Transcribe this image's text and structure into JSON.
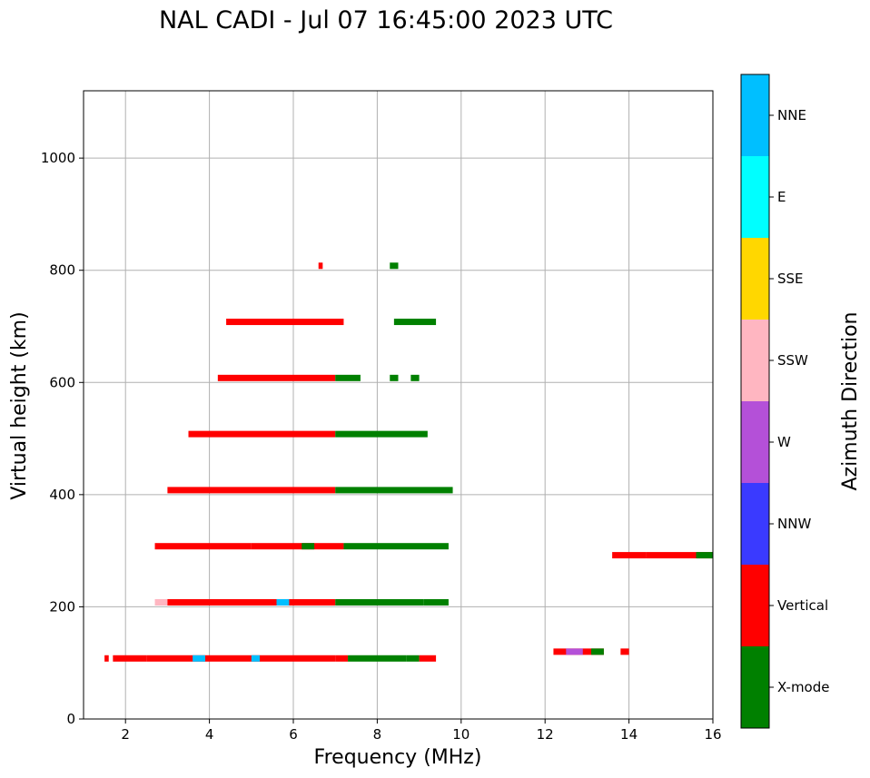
{
  "chart_data": {
    "type": "scatter",
    "title": "NAL CADI - Jul 07 16:45:00 2023 UTC",
    "xlabel": "Frequency (MHz)",
    "ylabel": "Virtual height (km)",
    "xlim": [
      1,
      16
    ],
    "ylim": [
      0,
      1120
    ],
    "xticks": [
      2,
      4,
      6,
      8,
      10,
      12,
      14,
      16
    ],
    "yticks": [
      0,
      200,
      400,
      600,
      800,
      1000
    ],
    "grid": true,
    "colorbar": {
      "label": "Azimuth Direction",
      "categories": [
        {
          "name": "X-mode",
          "color": "#008000"
        },
        {
          "name": "Vertical",
          "color": "#ff0000"
        },
        {
          "name": "NNW",
          "color": "#3a3aff"
        },
        {
          "name": "W",
          "color": "#b450d8"
        },
        {
          "name": "SSW",
          "color": "#ffb6c1"
        },
        {
          "name": "SSE",
          "color": "#ffd700"
        },
        {
          "name": "E",
          "color": "#00ffff"
        },
        {
          "name": "NNE",
          "color": "#00bfff"
        }
      ]
    },
    "echo_bands": [
      {
        "height": 108,
        "segments": [
          {
            "x0": 1.5,
            "x1": 1.6,
            "class": "Vertical"
          },
          {
            "x0": 1.7,
            "x1": 2.5,
            "class": "Vertical"
          },
          {
            "x0": 2.5,
            "x1": 7.0,
            "class": "Vertical"
          },
          {
            "x0": 3.6,
            "x1": 3.9,
            "class": "NNE"
          },
          {
            "x0": 5.0,
            "x1": 5.2,
            "class": "NNE"
          },
          {
            "x0": 7.0,
            "x1": 7.3,
            "class": "Vertical"
          },
          {
            "x0": 7.3,
            "x1": 8.7,
            "class": "X-mode"
          },
          {
            "x0": 8.7,
            "x1": 9.0,
            "class": "X-mode"
          },
          {
            "x0": 9.0,
            "x1": 9.4,
            "class": "Vertical"
          }
        ]
      },
      {
        "height": 208,
        "segments": [
          {
            "x0": 2.7,
            "x1": 3.0,
            "class": "SSW"
          },
          {
            "x0": 3.0,
            "x1": 7.0,
            "class": "Vertical"
          },
          {
            "x0": 5.6,
            "x1": 5.9,
            "class": "NNE"
          },
          {
            "x0": 7.0,
            "x1": 9.1,
            "class": "X-mode"
          },
          {
            "x0": 9.1,
            "x1": 9.7,
            "class": "X-mode"
          }
        ]
      },
      {
        "height": 308,
        "segments": [
          {
            "x0": 2.7,
            "x1": 5.0,
            "class": "Vertical"
          },
          {
            "x0": 5.0,
            "x1": 7.2,
            "class": "Vertical"
          },
          {
            "x0": 6.2,
            "x1": 6.5,
            "class": "X-mode"
          },
          {
            "x0": 7.2,
            "x1": 9.7,
            "class": "X-mode"
          }
        ]
      },
      {
        "height": 408,
        "segments": [
          {
            "x0": 3.0,
            "x1": 7.0,
            "class": "Vertical"
          },
          {
            "x0": 7.0,
            "x1": 9.8,
            "class": "X-mode"
          }
        ]
      },
      {
        "height": 508,
        "segments": [
          {
            "x0": 3.5,
            "x1": 7.0,
            "class": "Vertical"
          },
          {
            "x0": 7.0,
            "x1": 9.2,
            "class": "X-mode"
          }
        ]
      },
      {
        "height": 608,
        "segments": [
          {
            "x0": 4.2,
            "x1": 7.0,
            "class": "Vertical"
          },
          {
            "x0": 7.0,
            "x1": 7.6,
            "class": "X-mode"
          },
          {
            "x0": 8.3,
            "x1": 8.5,
            "class": "X-mode"
          },
          {
            "x0": 8.8,
            "x1": 9.0,
            "class": "X-mode"
          }
        ]
      },
      {
        "height": 708,
        "segments": [
          {
            "x0": 4.4,
            "x1": 7.2,
            "class": "Vertical"
          },
          {
            "x0": 8.4,
            "x1": 9.4,
            "class": "X-mode"
          }
        ]
      },
      {
        "height": 808,
        "segments": [
          {
            "x0": 6.6,
            "x1": 6.7,
            "class": "Vertical"
          },
          {
            "x0": 8.3,
            "x1": 8.5,
            "class": "X-mode"
          }
        ]
      },
      {
        "height": 120,
        "segments": [
          {
            "x0": 12.2,
            "x1": 13.4,
            "class": "Vertical"
          },
          {
            "x0": 12.5,
            "x1": 12.9,
            "class": "W"
          },
          {
            "x0": 13.1,
            "x1": 13.4,
            "class": "X-mode"
          },
          {
            "x0": 13.8,
            "x1": 14.0,
            "class": "Vertical"
          }
        ]
      },
      {
        "height": 292,
        "segments": [
          {
            "x0": 13.6,
            "x1": 14.4,
            "class": "Vertical"
          },
          {
            "x0": 14.4,
            "x1": 16.0,
            "class": "Vertical"
          },
          {
            "x0": 15.6,
            "x1": 16.0,
            "class": "X-mode"
          }
        ]
      }
    ]
  }
}
